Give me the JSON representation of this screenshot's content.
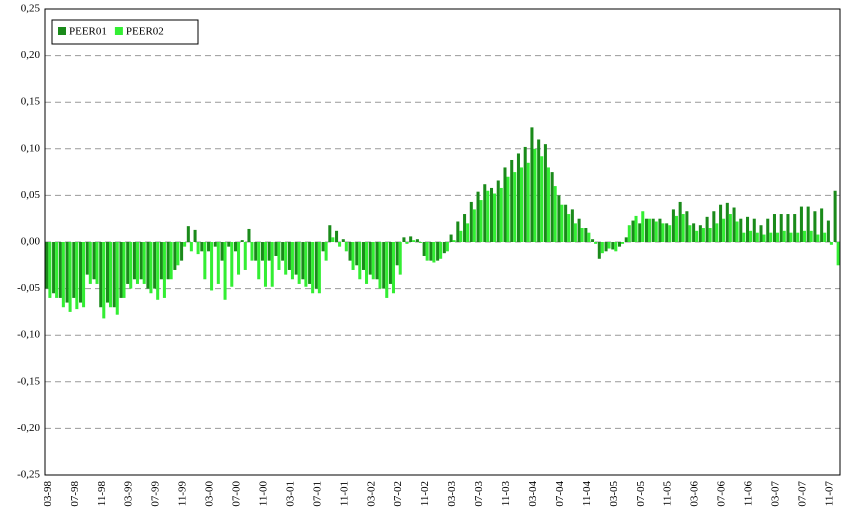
{
  "chart_data": {
    "type": "bar",
    "categories": [
      "03-98",
      null,
      null,
      null,
      "07-98",
      null,
      null,
      null,
      "11-98",
      null,
      null,
      null,
      "03-99",
      null,
      null,
      null,
      "07-99",
      null,
      null,
      null,
      "11-99",
      null,
      null,
      null,
      "03-00",
      null,
      null,
      null,
      "07-00",
      null,
      null,
      null,
      "11-00",
      null,
      null,
      null,
      "03-01",
      null,
      null,
      null,
      "07-01",
      null,
      null,
      null,
      "11-01",
      null,
      null,
      null,
      "03-02",
      null,
      null,
      null,
      "07-02",
      null,
      null,
      null,
      "11-02",
      null,
      null,
      null,
      "03-03",
      null,
      null,
      null,
      "07-03",
      null,
      null,
      null,
      "11-03",
      null,
      null,
      null,
      "03-04",
      null,
      null,
      null,
      "07-04",
      null,
      null,
      null,
      "11-04",
      null,
      null,
      null,
      "03-05",
      null,
      null,
      null,
      "07-05",
      null,
      null,
      null,
      "11-05",
      null,
      null,
      null,
      "03-06",
      null,
      null,
      null,
      "07-06",
      null,
      null,
      null,
      "11-06",
      null,
      null,
      null,
      "03-07",
      null,
      null,
      null,
      "07-07",
      null,
      null,
      null,
      "11-07",
      null
    ],
    "series": [
      {
        "name": "PEER01",
        "color": "#1a8a1a",
        "values": [
          -0.05,
          -0.055,
          -0.06,
          -0.065,
          -0.06,
          -0.065,
          -0.035,
          -0.04,
          -0.07,
          -0.065,
          -0.07,
          -0.06,
          -0.045,
          -0.04,
          -0.04,
          -0.05,
          -0.05,
          -0.04,
          -0.04,
          -0.03,
          -0.02,
          0.017,
          0.013,
          -0.01,
          -0.01,
          -0.005,
          -0.02,
          -0.005,
          -0.01,
          0.002,
          0.014,
          -0.02,
          -0.02,
          -0.02,
          -0.015,
          -0.02,
          -0.03,
          -0.035,
          -0.04,
          -0.045,
          -0.05,
          -0.01,
          0.018,
          0.012,
          0.003,
          -0.02,
          -0.025,
          -0.03,
          -0.035,
          -0.04,
          -0.05,
          -0.045,
          -0.025,
          0.005,
          0.006,
          0.003,
          -0.015,
          -0.02,
          -0.02,
          -0.012,
          0.008,
          0.022,
          0.03,
          0.043,
          0.054,
          0.062,
          0.058,
          0.066,
          0.08,
          0.088,
          0.095,
          0.102,
          0.123,
          0.11,
          0.105,
          0.075,
          0.05,
          0.04,
          0.035,
          0.025,
          0.015,
          0.003,
          -0.018,
          -0.01,
          -0.008,
          -0.005,
          0.005,
          0.023,
          0.02,
          0.025,
          0.025,
          0.025,
          0.02,
          0.035,
          0.043,
          0.033,
          0.02,
          0.018,
          0.027,
          0.033,
          0.04,
          0.042,
          0.037,
          0.025,
          0.027,
          0.025,
          0.018,
          0.025,
          0.03,
          0.03,
          0.03,
          0.03,
          0.038,
          0.038,
          0.033,
          0.036,
          0.023,
          0.055
        ]
      },
      {
        "name": "PEER02",
        "color": "#33ee33",
        "values": [
          -0.06,
          -0.06,
          -0.07,
          -0.075,
          -0.072,
          -0.07,
          -0.045,
          -0.045,
          -0.082,
          -0.07,
          -0.078,
          -0.06,
          -0.05,
          -0.045,
          -0.045,
          -0.055,
          -0.062,
          -0.06,
          -0.04,
          -0.025,
          -0.005,
          -0.01,
          -0.013,
          -0.04,
          -0.052,
          -0.045,
          -0.062,
          -0.048,
          -0.035,
          -0.03,
          -0.02,
          -0.04,
          -0.048,
          -0.048,
          -0.03,
          -0.035,
          -0.04,
          -0.045,
          -0.048,
          -0.055,
          -0.055,
          -0.02,
          0.005,
          -0.005,
          -0.01,
          -0.03,
          -0.04,
          -0.045,
          -0.04,
          -0.05,
          -0.06,
          -0.055,
          -0.035,
          -0.002,
          0.002,
          -0.001,
          -0.02,
          -0.022,
          -0.018,
          -0.01,
          0.002,
          0.012,
          0.02,
          0.035,
          0.045,
          0.055,
          0.052,
          0.058,
          0.07,
          0.075,
          0.08,
          0.085,
          0.1,
          0.092,
          0.08,
          0.06,
          0.04,
          0.03,
          0.02,
          0.015,
          0.01,
          -0.002,
          -0.012,
          -0.007,
          -0.01,
          -0.002,
          0.018,
          0.028,
          0.033,
          0.025,
          0.022,
          0.02,
          0.018,
          0.028,
          0.03,
          0.018,
          0.012,
          0.015,
          0.015,
          0.02,
          0.025,
          0.03,
          0.022,
          0.01,
          0.012,
          0.01,
          0.008,
          0.01,
          0.01,
          0.012,
          0.01,
          0.01,
          0.012,
          0.012,
          0.008,
          0.01,
          -0.003,
          -0.025
        ]
      }
    ],
    "ylim": [
      -0.25,
      0.25
    ],
    "yticks": [
      {
        "value": -0.25,
        "label": "-0,25"
      },
      {
        "value": -0.2,
        "label": "-0,20"
      },
      {
        "value": -0.15,
        "label": "-0,15"
      },
      {
        "value": -0.1,
        "label": "-0,10"
      },
      {
        "value": -0.05,
        "label": "-0,05"
      },
      {
        "value": 0,
        "label": "0,00"
      },
      {
        "value": 0.05,
        "label": "0,05"
      },
      {
        "value": 0.1,
        "label": "0,10"
      },
      {
        "value": 0.15,
        "label": "0,15"
      },
      {
        "value": 0.2,
        "label": "0,20"
      },
      {
        "value": 0.25,
        "label": "0,25"
      }
    ],
    "grid": true,
    "legend": "top-left"
  }
}
